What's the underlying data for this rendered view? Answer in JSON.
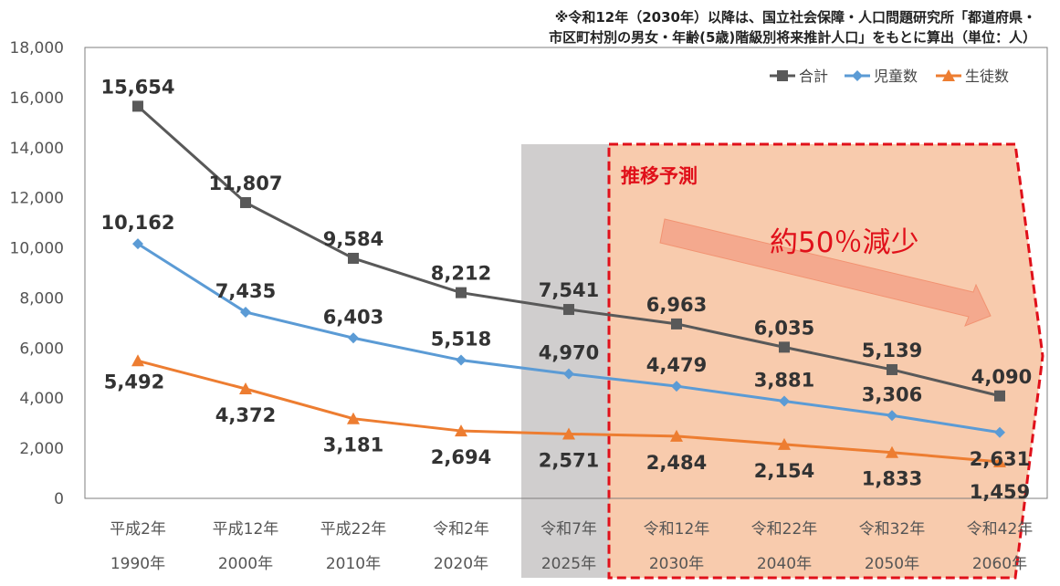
{
  "note": {
    "line1": "※令和12年（2030年）以降は、国立社会保障・人口問題研究所「都道府県・",
    "line2": "市区町村別の男女・年齢(5歳)階級別将来推計人口」をもとに算出（単位：人）"
  },
  "forecast": {
    "title": "推移予測",
    "reduction": "約50％減少"
  },
  "colors": {
    "total": "#595959",
    "children": "#5b9bd5",
    "students": "#ed7d31",
    "forecast_fill": "#f8cbad",
    "forecast_border": "#e0101a",
    "highlight": "#d0cece"
  },
  "chart_data": {
    "type": "line",
    "categories": [
      "平成2年",
      "平成12年",
      "平成22年",
      "令和2年",
      "令和7年",
      "令和12年",
      "令和22年",
      "令和32年",
      "令和42年"
    ],
    "categories_sub": [
      "1990年",
      "2000年",
      "2010年",
      "2020年",
      "2025年",
      "2030年",
      "2040年",
      "2050年",
      "2060年"
    ],
    "series": [
      {
        "name": "合計",
        "marker": "square",
        "values": [
          15654,
          11807,
          9584,
          8212,
          7541,
          6963,
          6035,
          5139,
          4090
        ],
        "labels": [
          "15,654",
          "11,807",
          "9,584",
          "8,212",
          "7,541",
          "6,963",
          "6,035",
          "5,139",
          "4,090"
        ]
      },
      {
        "name": "児童数",
        "marker": "diamond",
        "values": [
          10162,
          7435,
          6403,
          5518,
          4970,
          4479,
          3881,
          3306,
          2631
        ],
        "labels": [
          "10,162",
          "7,435",
          "6,403",
          "5,518",
          "4,970",
          "4,479",
          "3,881",
          "3,306",
          "2,631"
        ]
      },
      {
        "name": "生徒数",
        "marker": "triangle",
        "values": [
          5492,
          4372,
          3181,
          2694,
          2571,
          2484,
          2154,
          1833,
          1459
        ],
        "labels": [
          "5,492",
          "4,372",
          "3,181",
          "2,694",
          "2,571",
          "2,484",
          "2,154",
          "1,833",
          "1,459"
        ]
      }
    ],
    "ylim": [
      0,
      18000
    ],
    "yticks": [
      "0",
      "2,000",
      "4,000",
      "6,000",
      "8,000",
      "10,000",
      "12,000",
      "14,000",
      "16,000",
      "18,000"
    ],
    "legend_position": "top-right",
    "grid": false,
    "highlight_category": "令和7年",
    "forecast_from_category": "令和12年"
  }
}
